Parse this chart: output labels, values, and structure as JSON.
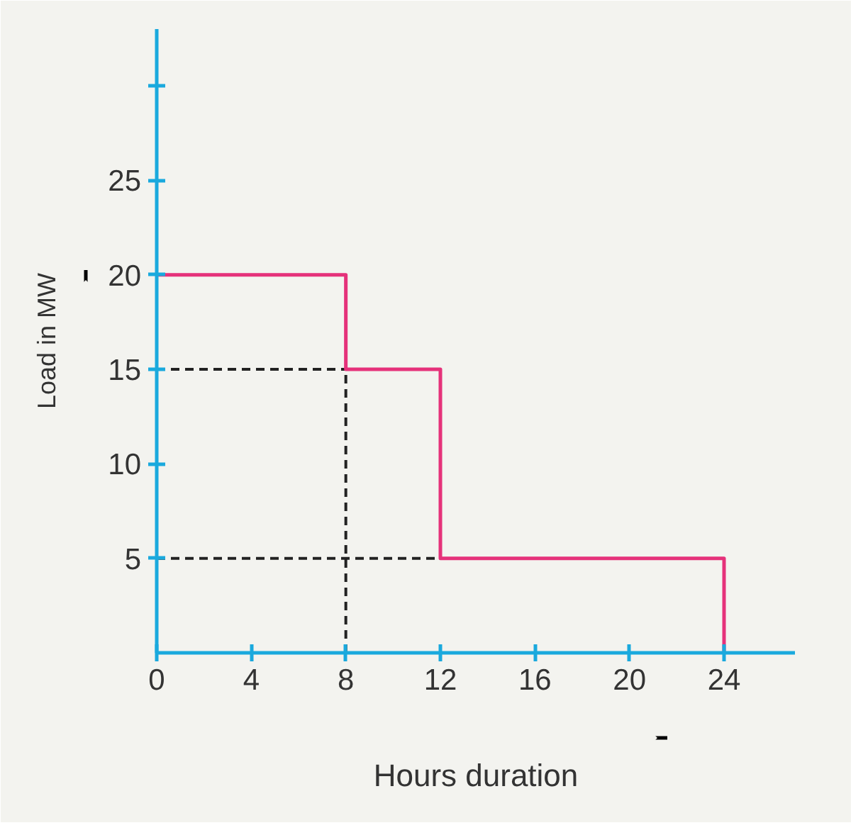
{
  "chart_data": {
    "type": "step",
    "xlabel": "Hours duration",
    "ylabel": "Load in MW",
    "x": [
      0,
      8,
      12,
      24
    ],
    "series": [
      {
        "color": "#e5317a",
        "values": [
          20,
          15,
          5,
          0
        ]
      }
    ],
    "xlim": [
      0,
      27
    ],
    "ylim": [
      0,
      33
    ],
    "xticks": [
      0,
      4,
      8,
      12,
      16,
      20,
      24
    ],
    "yticks": [
      5,
      10,
      15,
      20,
      25,
      {
        "value": 30,
        "label": null
      }
    ],
    "ref_lines": [
      {
        "axis": "y",
        "value": 15,
        "color": "#222222",
        "line_style": "dashed"
      },
      {
        "axis": "y",
        "value": 5,
        "color": "#222222",
        "line_style": "dashed"
      },
      {
        "axis": "x",
        "value": 8,
        "color": "#222222",
        "line_style": "dashed"
      }
    ],
    "grid": false
  }
}
